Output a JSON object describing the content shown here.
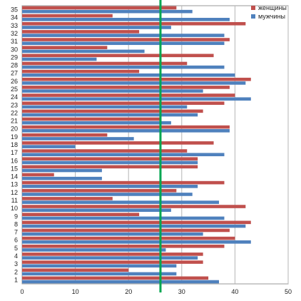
{
  "chart_data": {
    "type": "bar",
    "orientation": "horizontal",
    "title": "",
    "xlabel": "",
    "ylabel": "",
    "categories": [
      "1",
      "2",
      "3",
      "4",
      "5",
      "6",
      "7",
      "8",
      "9",
      "10",
      "11",
      "12",
      "13",
      "14",
      "15",
      "16",
      "17",
      "18",
      "19",
      "20",
      "21",
      "22",
      "23",
      "24",
      "25",
      "26",
      "27",
      "28",
      "29",
      "30",
      "31",
      "32",
      "33",
      "34",
      "35"
    ],
    "series": [
      {
        "name": "женщины",
        "color": "#c0504d",
        "values": [
          35,
          20,
          34,
          34,
          38,
          40,
          39,
          43,
          22,
          42,
          17,
          29,
          38,
          6,
          33,
          33,
          31,
          36,
          16,
          39,
          26,
          34,
          38,
          40,
          39,
          43,
          22,
          31,
          36,
          16,
          39,
          22,
          42,
          17,
          29
        ]
      },
      {
        "name": "мужчины",
        "color": "#4f81bd",
        "values": [
          37,
          29,
          29,
          33,
          27,
          43,
          34,
          42,
          38,
          28,
          37,
          32,
          33,
          15,
          15,
          33,
          38,
          10,
          21,
          39,
          28,
          33,
          31,
          43,
          34,
          42,
          40,
          38,
          14,
          23,
          38,
          38,
          28,
          39,
          32
        ]
      }
    ],
    "xlim": [
      0,
      50
    ],
    "x_ticks": [
      0,
      10,
      20,
      30,
      40,
      50
    ],
    "grid": "vertical",
    "legend_position": "top-right",
    "reference_line": {
      "value": 26,
      "color": "#00a651"
    }
  }
}
